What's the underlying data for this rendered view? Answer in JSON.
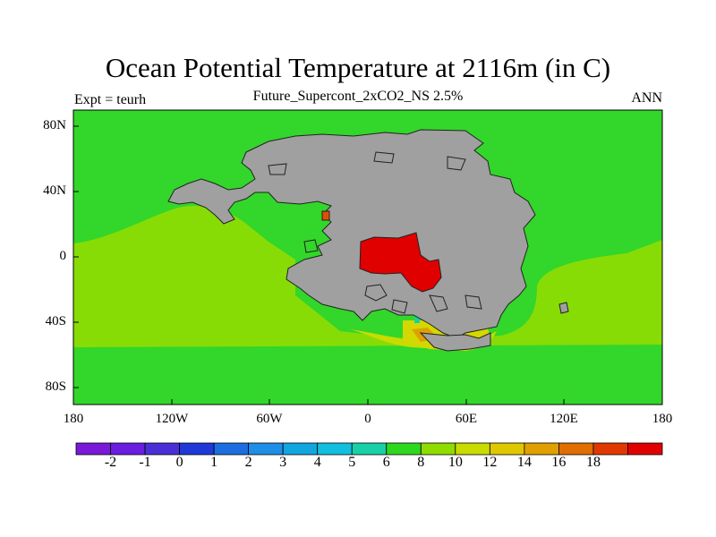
{
  "header": {
    "title": "Ocean Potential Temperature at 2116m (in C)",
    "subtitle": "Future_Supercont_2xCO2_NS 2.5%",
    "left_label": "Expt = teurh",
    "right_label": "ANN"
  },
  "axes": {
    "y_ticks": [
      "80N",
      "40N",
      "0",
      "40S",
      "80S"
    ],
    "y_values": [
      80,
      40,
      0,
      -40,
      -80
    ],
    "x_ticks": [
      "180",
      "120W",
      "60W",
      "0",
      "60E",
      "120E",
      "180"
    ],
    "x_values": [
      -180,
      -120,
      -60,
      0,
      60,
      120,
      180
    ],
    "lat_range": [
      -90,
      90
    ],
    "lon_range": [
      -180,
      180
    ]
  },
  "colorbar": {
    "labels": [
      "-2",
      "-1",
      "0",
      "1",
      "2",
      "3",
      "4",
      "5",
      "6",
      "8",
      "10",
      "12",
      "14",
      "16",
      "18"
    ],
    "colors": [
      "#7a19d8",
      "#6a1ee0",
      "#4b2fd6",
      "#1f38d8",
      "#1c6ee0",
      "#1e8ee6",
      "#12a6e0",
      "#10c0de",
      "#18d0a8",
      "#2ed81e",
      "#8edc00",
      "#c8dc00",
      "#e0c800",
      "#e0a000",
      "#e06e00",
      "#e03800",
      "#e00000"
    ]
  },
  "map_colors": {
    "ocean_main": "#33d62a",
    "ocean_warm": "#88dc06",
    "ocean_warmer": "#d4d800",
    "land": "#a0a0a0",
    "hot": "#e00000",
    "accent": "#e0a000",
    "cyan": "#18d0a8"
  }
}
